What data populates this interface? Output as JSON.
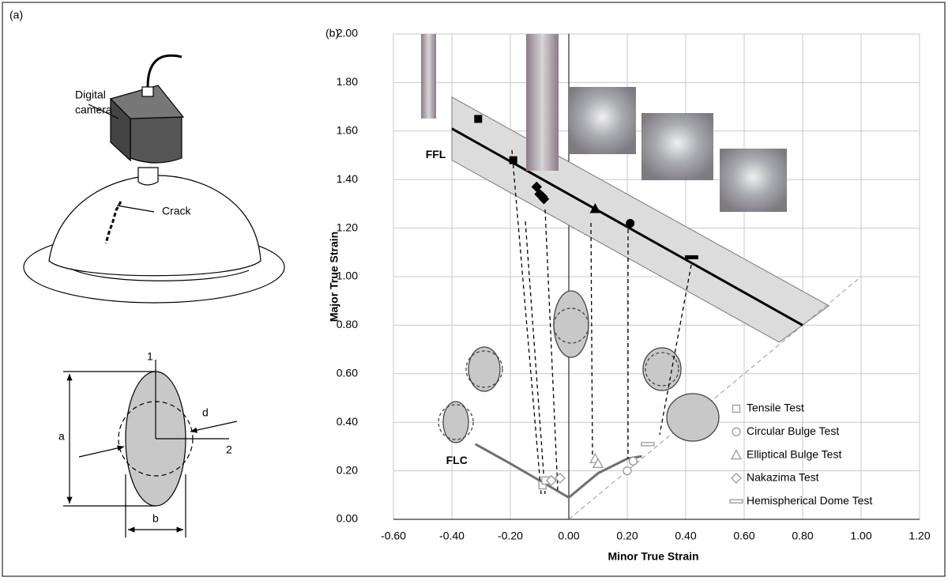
{
  "panel_a": {
    "label": "(a)",
    "camera_label_lines": [
      "Digital",
      "camera"
    ],
    "crack_label": "Crack",
    "axis_1": "1",
    "axis_2": "2",
    "dim_a": "a",
    "dim_b": "b",
    "dim_d": "d"
  },
  "chart_data": {
    "type": "scatter",
    "panel_label": "(b)",
    "xlabel": "Minor True Strain",
    "ylabel": "Major True Strain",
    "xlim": [
      -0.6,
      1.2
    ],
    "ylim": [
      0,
      2.0
    ],
    "xticks": [
      {
        "value": -0.6,
        "label": "-0.60"
      },
      {
        "value": -0.4,
        "label": "-0.40"
      },
      {
        "value": -0.2,
        "label": "-0.20"
      },
      {
        "value": 0,
        "label": "0.00"
      },
      {
        "value": 0.2,
        "label": "0.20"
      },
      {
        "value": 0.4,
        "label": "0.40"
      },
      {
        "value": 0.6,
        "label": "0.60"
      },
      {
        "value": 0.8,
        "label": "0.80"
      },
      {
        "value": 1.0,
        "label": "1.00"
      },
      {
        "value": 1.2,
        "label": "1.20"
      }
    ],
    "yticks": [
      {
        "value": 0,
        "label": "0.00"
      },
      {
        "value": 0.2,
        "label": "0.20"
      },
      {
        "value": 0.4,
        "label": "0.40"
      },
      {
        "value": 0.6,
        "label": "0.60"
      },
      {
        "value": 0.8,
        "label": "0.80"
      },
      {
        "value": 1.0,
        "label": "1.00"
      },
      {
        "value": 1.2,
        "label": "1.20"
      },
      {
        "value": 1.4,
        "label": "1.40"
      },
      {
        "value": 1.6,
        "label": "1.60"
      },
      {
        "value": 1.8,
        "label": "1.80"
      },
      {
        "value": 2.0,
        "label": "2.00"
      }
    ],
    "grid": true,
    "band": {
      "color": "#dcdcdc",
      "x_upper": [
        -0.4,
        0.89
      ],
      "y_upper": [
        1.74,
        0.88
      ],
      "x_lower": [
        -0.4,
        0.72
      ],
      "y_lower": [
        1.48,
        0.73
      ]
    },
    "reference_line": {
      "x": [
        0,
        1.0
      ],
      "y": [
        0,
        1.0
      ],
      "color": "#999999"
    },
    "lines": [
      {
        "label": "FFL",
        "color": "#000000",
        "x": [
          -0.4,
          0.8
        ],
        "y": [
          1.61,
          0.8
        ]
      },
      {
        "label": "FLC",
        "color": "#707070",
        "x": [
          -0.32,
          -0.2,
          -0.1,
          0,
          0.1,
          0.2,
          0.25
        ],
        "y": [
          0.31,
          0.23,
          0.16,
          0.09,
          0.19,
          0.25,
          0.26
        ]
      }
    ],
    "legend": "lower right",
    "series": [
      {
        "name": "Tensile Test",
        "marker": "square",
        "color": "#999999",
        "x": [
          -0.09,
          -0.08
        ],
        "y": [
          0.14,
          0.16
        ],
        "fracture_x": [
          -0.31,
          -0.19
        ],
        "fracture_y": [
          1.65,
          1.48
        ]
      },
      {
        "name": "Circular Bulge Test",
        "marker": "circle",
        "color": "#999999",
        "x": [
          0.2,
          0.22
        ],
        "y": [
          0.2,
          0.24
        ],
        "fracture_x": [
          0.21
        ],
        "fracture_y": [
          1.22
        ]
      },
      {
        "name": "Elliptical Bulge Test",
        "marker": "triangle",
        "color": "#999999",
        "x": [
          0.09,
          0.1
        ],
        "y": [
          0.25,
          0.23
        ],
        "fracture_x": [
          0.09
        ],
        "fracture_y": [
          1.28
        ]
      },
      {
        "name": "Nakazima Test",
        "marker": "diamond",
        "color": "#999999",
        "x": [
          -0.06,
          -0.03
        ],
        "y": [
          0.16,
          0.17
        ],
        "fracture_x": [
          -0.11,
          -0.1,
          -0.09,
          -0.085
        ],
        "fracture_y": [
          1.37,
          1.34,
          1.33,
          1.32
        ]
      },
      {
        "name": "Hemispherical Dome Test",
        "marker": "dash",
        "color": "#999999",
        "x": [
          0.27
        ],
        "y": [
          0.31
        ],
        "fracture_x": [
          0.42
        ],
        "fracture_y": [
          1.08
        ]
      }
    ]
  }
}
